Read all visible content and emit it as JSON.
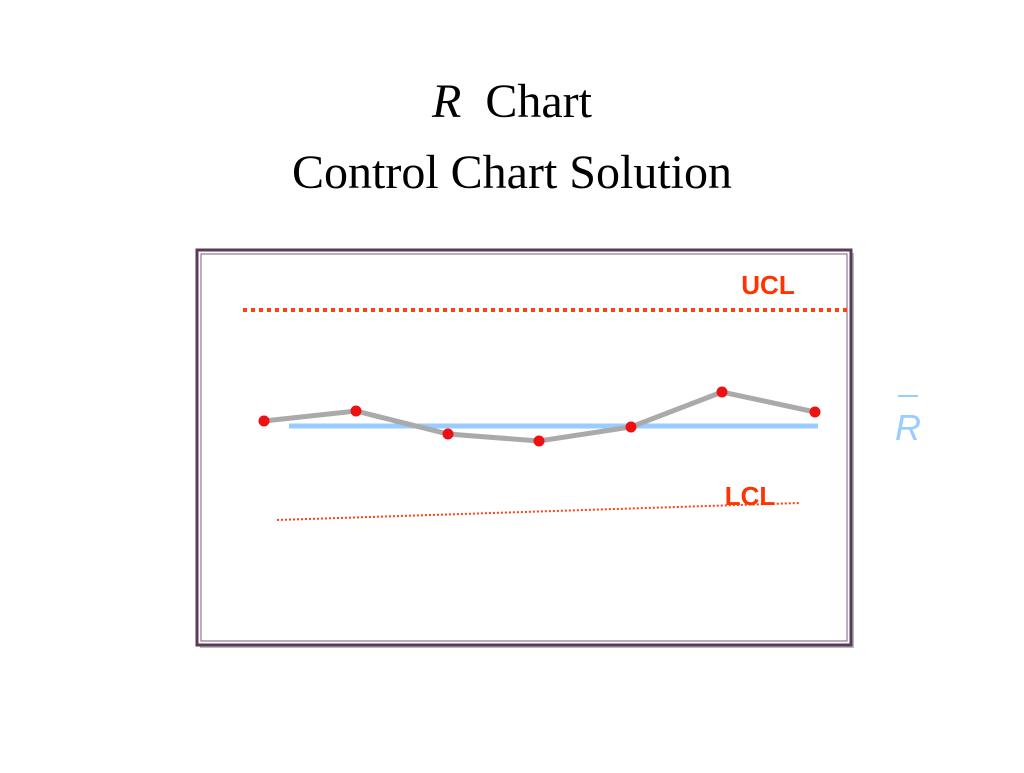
{
  "header": {
    "symbol": "R",
    "title": "Chart",
    "subtitle": "Control Chart Solution"
  },
  "labels": {
    "upper": "UCL",
    "center": "R",
    "lower": "LCL"
  }
}
